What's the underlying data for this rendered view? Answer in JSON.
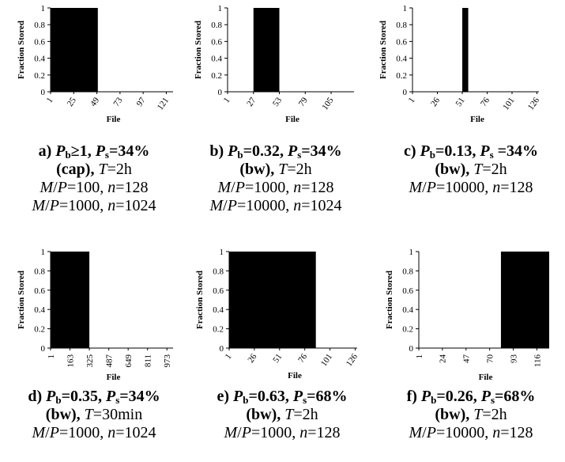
{
  "chart_data": [
    {
      "type": "bar",
      "xlabel": "File",
      "ylabel": "Fraction Stored",
      "ylim": [
        0,
        1
      ],
      "yticks": [
        "0",
        "0.2",
        "0.4",
        "0.6",
        "0.8",
        "1"
      ],
      "xticks": [
        1,
        25,
        49,
        73,
        97,
        121
      ],
      "xticks_rotated": true,
      "xmax": 128,
      "bars": [
        {
          "from": 1,
          "to": 50,
          "value": 1
        }
      ],
      "caption": {
        "letter": "a)",
        "pb": "P",
        "pb_sub": "b",
        "pb_val": "≥1, ",
        "ps": "P",
        "ps_sub": "s",
        "ps_val": "=34%",
        "mode": "(cap),",
        "t_label": "T",
        "t_val": "=2h",
        "lines": [
          "M/P=100, n=128",
          "M/P=1000, n=1024"
        ]
      }
    },
    {
      "type": "bar",
      "xlabel": "File",
      "ylabel": "Fraction Stored",
      "ylim": [
        0,
        1
      ],
      "yticks": [
        "0",
        "0.2",
        "0.4",
        "0.6",
        "0.8",
        "1"
      ],
      "xticks": [
        1,
        27,
        53,
        79,
        105
      ],
      "xticks_rotated": true,
      "xmax": 128,
      "bars": [
        {
          "from": 27,
          "to": 53,
          "value": 1
        }
      ],
      "caption": {
        "letter": "b)",
        "pb": "P",
        "pb_sub": "b",
        "pb_val": "=0.32, ",
        "ps": "P",
        "ps_sub": "s",
        "ps_val": "=34%",
        "mode": "(bw),",
        "t_label": "T",
        "t_val": "=2h",
        "lines": [
          "M/P=1000, n=128",
          "M/P=10000, n=1024"
        ]
      }
    },
    {
      "type": "bar",
      "xlabel": "File",
      "ylabel": "Fraction Stored",
      "ylim": [
        0,
        1
      ],
      "yticks": [
        "0",
        "0.2",
        "0.4",
        "0.6",
        "0.8",
        "1"
      ],
      "xticks": [
        1,
        26,
        51,
        76,
        101,
        126
      ],
      "xticks_rotated": true,
      "xmax": 128,
      "bars": [
        {
          "from": 51,
          "to": 57,
          "value": 1
        }
      ],
      "caption": {
        "letter": "c)",
        "pb": "P",
        "pb_sub": "b",
        "pb_val": "=0.13, ",
        "ps": "P",
        "ps_sub": "s",
        "ps_val": " =34%",
        "mode": "(bw),",
        "t_label": "T",
        "t_val": "=2h",
        "lines": [
          "M/P=10000, n=128"
        ]
      }
    },
    {
      "type": "bar",
      "xlabel": "File",
      "ylabel": "Fraction Stored",
      "ylim": [
        0,
        1
      ],
      "yticks": [
        "0",
        "0.2",
        "0.4",
        "0.6",
        "0.8",
        "1"
      ],
      "xticks": [
        1,
        163,
        325,
        487,
        649,
        811,
        973
      ],
      "xticks_rotated": true,
      "xmax": 1024,
      "bars": [
        {
          "from": 1,
          "to": 325,
          "value": 1
        }
      ],
      "caption": {
        "letter": "d)",
        "pb": "P",
        "pb_sub": "b",
        "pb_val": "=0.35, ",
        "ps": "P",
        "ps_sub": "s",
        "ps_val": "=34%",
        "mode": "(bw),",
        "t_label": "T",
        "t_val": "=30min",
        "lines": [
          "M/P=1000, n=1024"
        ]
      }
    },
    {
      "type": "bar",
      "xlabel": "File",
      "ylabel": "Fraction Stored",
      "ylim": [
        0,
        1
      ],
      "yticks": [
        "0",
        "0.2",
        "0.4",
        "0.6",
        "0.8",
        "1"
      ],
      "xticks": [
        1,
        26,
        51,
        76,
        101,
        126
      ],
      "xticks_rotated": true,
      "xmax": 128,
      "bars": [
        {
          "from": 1,
          "to": 87,
          "value": 1
        }
      ],
      "caption": {
        "letter": "e)",
        "pb": "P",
        "pb_sub": "b",
        "pb_val": "=0.63, ",
        "ps": "P",
        "ps_sub": "s",
        "ps_val": "=68%",
        "mode": "(bw),",
        "t_label": "T",
        "t_val": "=2h",
        "lines": [
          "M/P=1000, n=128"
        ]
      }
    },
    {
      "type": "bar",
      "xlabel": "File",
      "ylabel": "Fraction Stored",
      "ylim": [
        0,
        1
      ],
      "yticks": [
        "0",
        "0.2",
        "0.4",
        "0.6",
        "0.8",
        "1"
      ],
      "xticks": [
        1,
        24,
        47,
        70,
        93,
        116
      ],
      "xticks_rotated": true,
      "xmax": 128,
      "bars": [
        {
          "from": 81,
          "to": 128,
          "value": 1
        }
      ],
      "caption": {
        "letter": "f)",
        "pb": "P",
        "pb_sub": "b",
        "pb_val": "=0.26, ",
        "ps": "P",
        "ps_sub": "s",
        "ps_val": "=68%",
        "mode": "(bw),",
        "t_label": "T",
        "t_val": "=2h",
        "lines": [
          "M/P=10000, n=128"
        ]
      }
    }
  ]
}
